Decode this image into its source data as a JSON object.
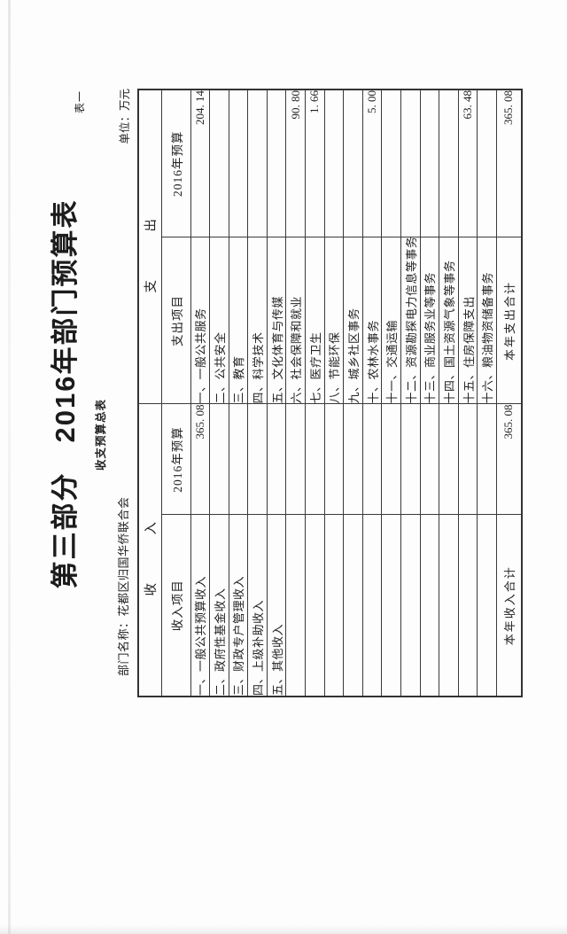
{
  "page": {
    "table_number": "表一",
    "title": "第三部分　2016年部门预算表",
    "subtitle": "收支预算总表",
    "department_label": "部门名称：花都区归国华侨联合会",
    "unit_label": "单位：万元"
  },
  "budget_table": {
    "section_headers": {
      "revenue": "收　入",
      "expenditure": "支　出"
    },
    "column_headers": {
      "revenue_item": "收入项目",
      "revenue_budget": "2016年预算",
      "expenditure_item": "支出项目",
      "expenditure_budget": "2016年预算"
    },
    "rows": [
      {
        "revenue_item": "一、一般公共预算收入",
        "revenue_value": "365. 08",
        "expenditure_item": "一、一般公共服务",
        "expenditure_value": "204. 14"
      },
      {
        "revenue_item": "二、政府性基金收入",
        "revenue_value": "",
        "expenditure_item": "二、公共安全",
        "expenditure_value": ""
      },
      {
        "revenue_item": "三、财政专户管理收入",
        "revenue_value": "",
        "expenditure_item": "三、教育",
        "expenditure_value": ""
      },
      {
        "revenue_item": "四、上级补助收入",
        "revenue_value": "",
        "expenditure_item": "四、科学技术",
        "expenditure_value": ""
      },
      {
        "revenue_item": "五、其他收入",
        "revenue_value": "",
        "expenditure_item": "五、文化体育与传媒",
        "expenditure_value": ""
      },
      {
        "revenue_item": "",
        "revenue_value": "",
        "expenditure_item": "六、社会保障和就业",
        "expenditure_value": "90. 80"
      },
      {
        "revenue_item": "",
        "revenue_value": "",
        "expenditure_item": "七、医疗卫生",
        "expenditure_value": "1. 66"
      },
      {
        "revenue_item": "",
        "revenue_value": "",
        "expenditure_item": "八、节能环保",
        "expenditure_value": ""
      },
      {
        "revenue_item": "",
        "revenue_value": "",
        "expenditure_item": "九、城乡社区事务",
        "expenditure_value": ""
      },
      {
        "revenue_item": "",
        "revenue_value": "",
        "expenditure_item": "十、农林水事务",
        "expenditure_value": "5. 00"
      },
      {
        "revenue_item": "",
        "revenue_value": "",
        "expenditure_item": "十一、交通运输",
        "expenditure_value": ""
      },
      {
        "revenue_item": "",
        "revenue_value": "",
        "expenditure_item": "十二、资源勘探电力信息等事务",
        "expenditure_value": ""
      },
      {
        "revenue_item": "",
        "revenue_value": "",
        "expenditure_item": "十三、商业服务业等事务",
        "expenditure_value": ""
      },
      {
        "revenue_item": "",
        "revenue_value": "",
        "expenditure_item": "十四、国土资源气象等事务",
        "expenditure_value": ""
      },
      {
        "revenue_item": "",
        "revenue_value": "",
        "expenditure_item": "十五、住房保障支出",
        "expenditure_value": "63. 48"
      },
      {
        "revenue_item": "",
        "revenue_value": "",
        "expenditure_item": "十六、粮油物资储备事务",
        "expenditure_value": ""
      }
    ],
    "total_row": {
      "revenue_label": "本年收入合计",
      "revenue_value": "365. 08",
      "expenditure_label": "本年支出合计",
      "expenditure_value": "365. 08"
    }
  }
}
